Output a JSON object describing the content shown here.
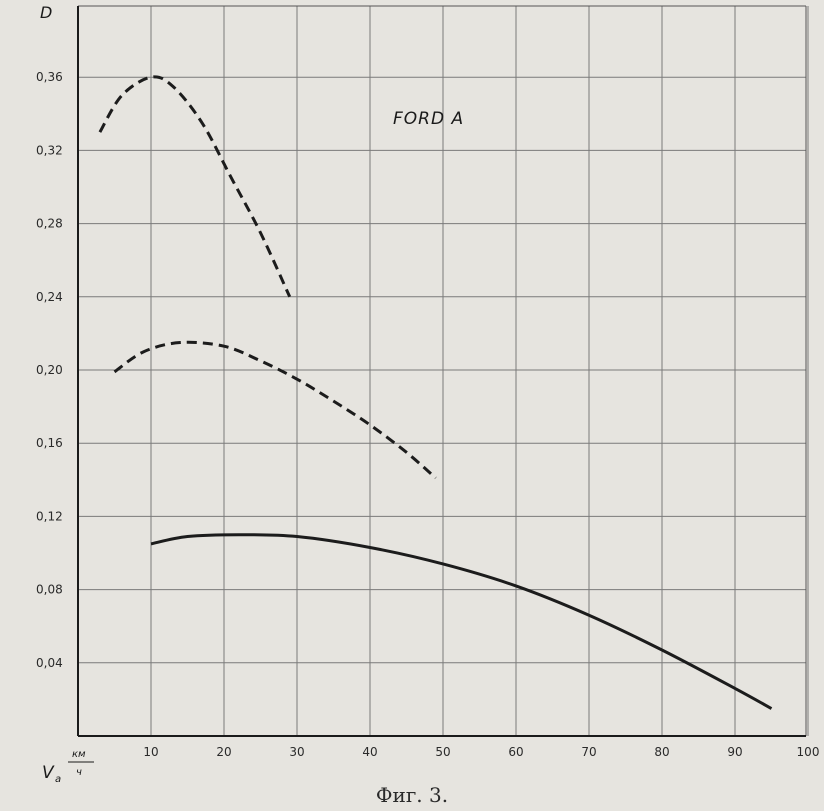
{
  "chart_data": {
    "type": "line",
    "title": "",
    "annotation": "FORD A",
    "caption": "Фиг. 3.",
    "ylabel": "D",
    "xlabel": {
      "symbol": "V",
      "subscript": "a",
      "unit_numerator": "км",
      "unit_denominator": "ч"
    },
    "xlim": [
      0,
      100
    ],
    "ylim": [
      0,
      0.4
    ],
    "x_ticks": [
      "10",
      "20",
      "30",
      "40",
      "50",
      "60",
      "70",
      "80",
      "90",
      "100"
    ],
    "y_ticks": [
      "0,04",
      "0,08",
      "0,12",
      "0,16",
      "0,20",
      "0,24",
      "0,28",
      "0,32",
      "0,36"
    ],
    "grid": true,
    "series": [
      {
        "style": "dashed",
        "x": [
          3,
          6,
          10,
          13,
          17,
          21,
          25,
          29
        ],
        "y": [
          0.33,
          0.35,
          0.36,
          0.355,
          0.335,
          0.305,
          0.275,
          0.24
        ]
      },
      {
        "style": "dashed",
        "x": [
          5,
          9,
          14,
          20,
          25,
          30,
          35,
          40,
          45,
          49
        ],
        "y": [
          0.199,
          0.21,
          0.215,
          0.213,
          0.205,
          0.195,
          0.183,
          0.17,
          0.155,
          0.141
        ]
      },
      {
        "style": "solid",
        "x": [
          10,
          15,
          22,
          30,
          40,
          50,
          60,
          70,
          80,
          90,
          95
        ],
        "y": [
          0.105,
          0.109,
          0.11,
          0.109,
          0.103,
          0.094,
          0.082,
          0.066,
          0.047,
          0.026,
          0.015
        ]
      }
    ]
  }
}
